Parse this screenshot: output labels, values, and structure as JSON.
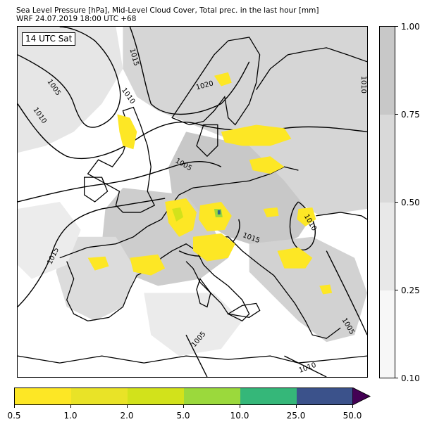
{
  "header": {
    "title_line1": "Sea Level Pressure [hPa], Mid-Level Cloud Cover, Total prec. in the last hour [mm]",
    "title_line2": "WRF 24.07.2019 18:00 UTC +68"
  },
  "map": {
    "time_label": "14 UTC Sat",
    "isobar_labels": [
      {
        "text": "1005"
      },
      {
        "text": "1010"
      },
      {
        "text": "1015"
      },
      {
        "text": "1010"
      },
      {
        "text": "1020"
      },
      {
        "text": "1005"
      },
      {
        "text": "1010"
      },
      {
        "text": "1015"
      },
      {
        "text": "1005"
      },
      {
        "text": "1010"
      },
      {
        "text": "1005"
      },
      {
        "text": "1010"
      },
      {
        "text": "1015"
      }
    ]
  },
  "legend_cloud": {
    "ticks": [
      "0.10",
      "0.25",
      "0.50",
      "0.75",
      "1.00"
    ],
    "colors": [
      "#f7f7f7",
      "#e8e8e8",
      "#d9d9d9",
      "#c8c8c8"
    ]
  },
  "legend_precip": {
    "ticks": [
      "0.5",
      "1.0",
      "2.0",
      "5.0",
      "10.0",
      "25.0",
      "50.0"
    ],
    "colors": [
      "#fde725",
      "#e9e327",
      "#d2e21b",
      "#9bd93c",
      "#35b779",
      "#31688e",
      "#3b528b"
    ],
    "extend_color": "#440154"
  }
}
